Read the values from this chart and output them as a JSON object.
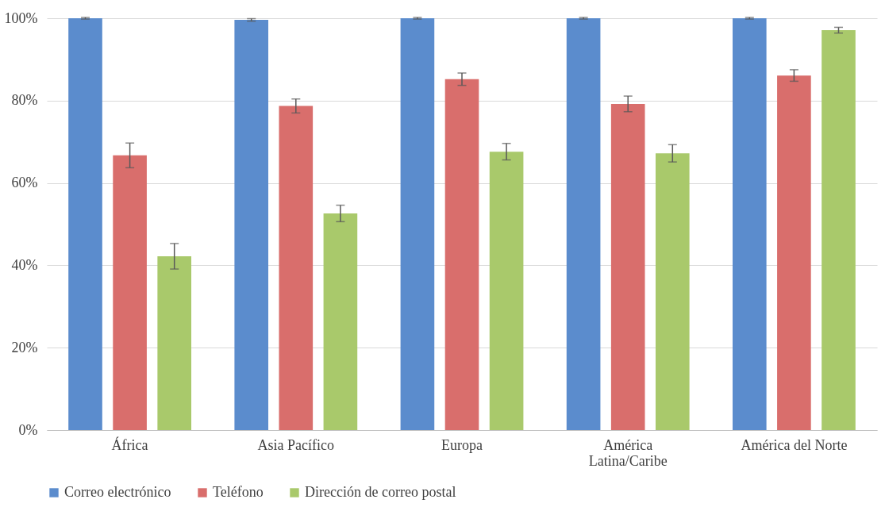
{
  "chart_data": {
    "type": "bar",
    "categories": [
      "África",
      "Asia Pacífico",
      "Europa",
      "América Latina/Caribe",
      "América del Norte"
    ],
    "series": [
      {
        "name": "Correo electrónico",
        "color": "#5b8ccd",
        "values": [
          100,
          99.6,
          100,
          100,
          100
        ],
        "errors": [
          0.2,
          0.3,
          0.2,
          0.2,
          0.2
        ]
      },
      {
        "name": "Teléfono",
        "color": "#d96e6c",
        "values": [
          66.7,
          78.7,
          85.2,
          79.2,
          86.1
        ],
        "errors": [
          3,
          1.7,
          1.5,
          1.9,
          1.4
        ]
      },
      {
        "name": "Dirección de correo postal",
        "color": "#a9c96b",
        "values": [
          42.2,
          52.6,
          67.6,
          67.2,
          97.1
        ],
        "errors": [
          3.1,
          2,
          2,
          2.1,
          0.7
        ]
      }
    ],
    "ylim": [
      0,
      100
    ],
    "yticks": [
      {
        "value": 0,
        "label": "0%"
      },
      {
        "value": 20,
        "label": "20%"
      },
      {
        "value": 40,
        "label": "40%"
      },
      {
        "value": 60,
        "label": "60%"
      },
      {
        "value": 80,
        "label": "80%"
      },
      {
        "value": 100,
        "label": "100%"
      }
    ],
    "grid": "y",
    "legend": "bottom"
  }
}
